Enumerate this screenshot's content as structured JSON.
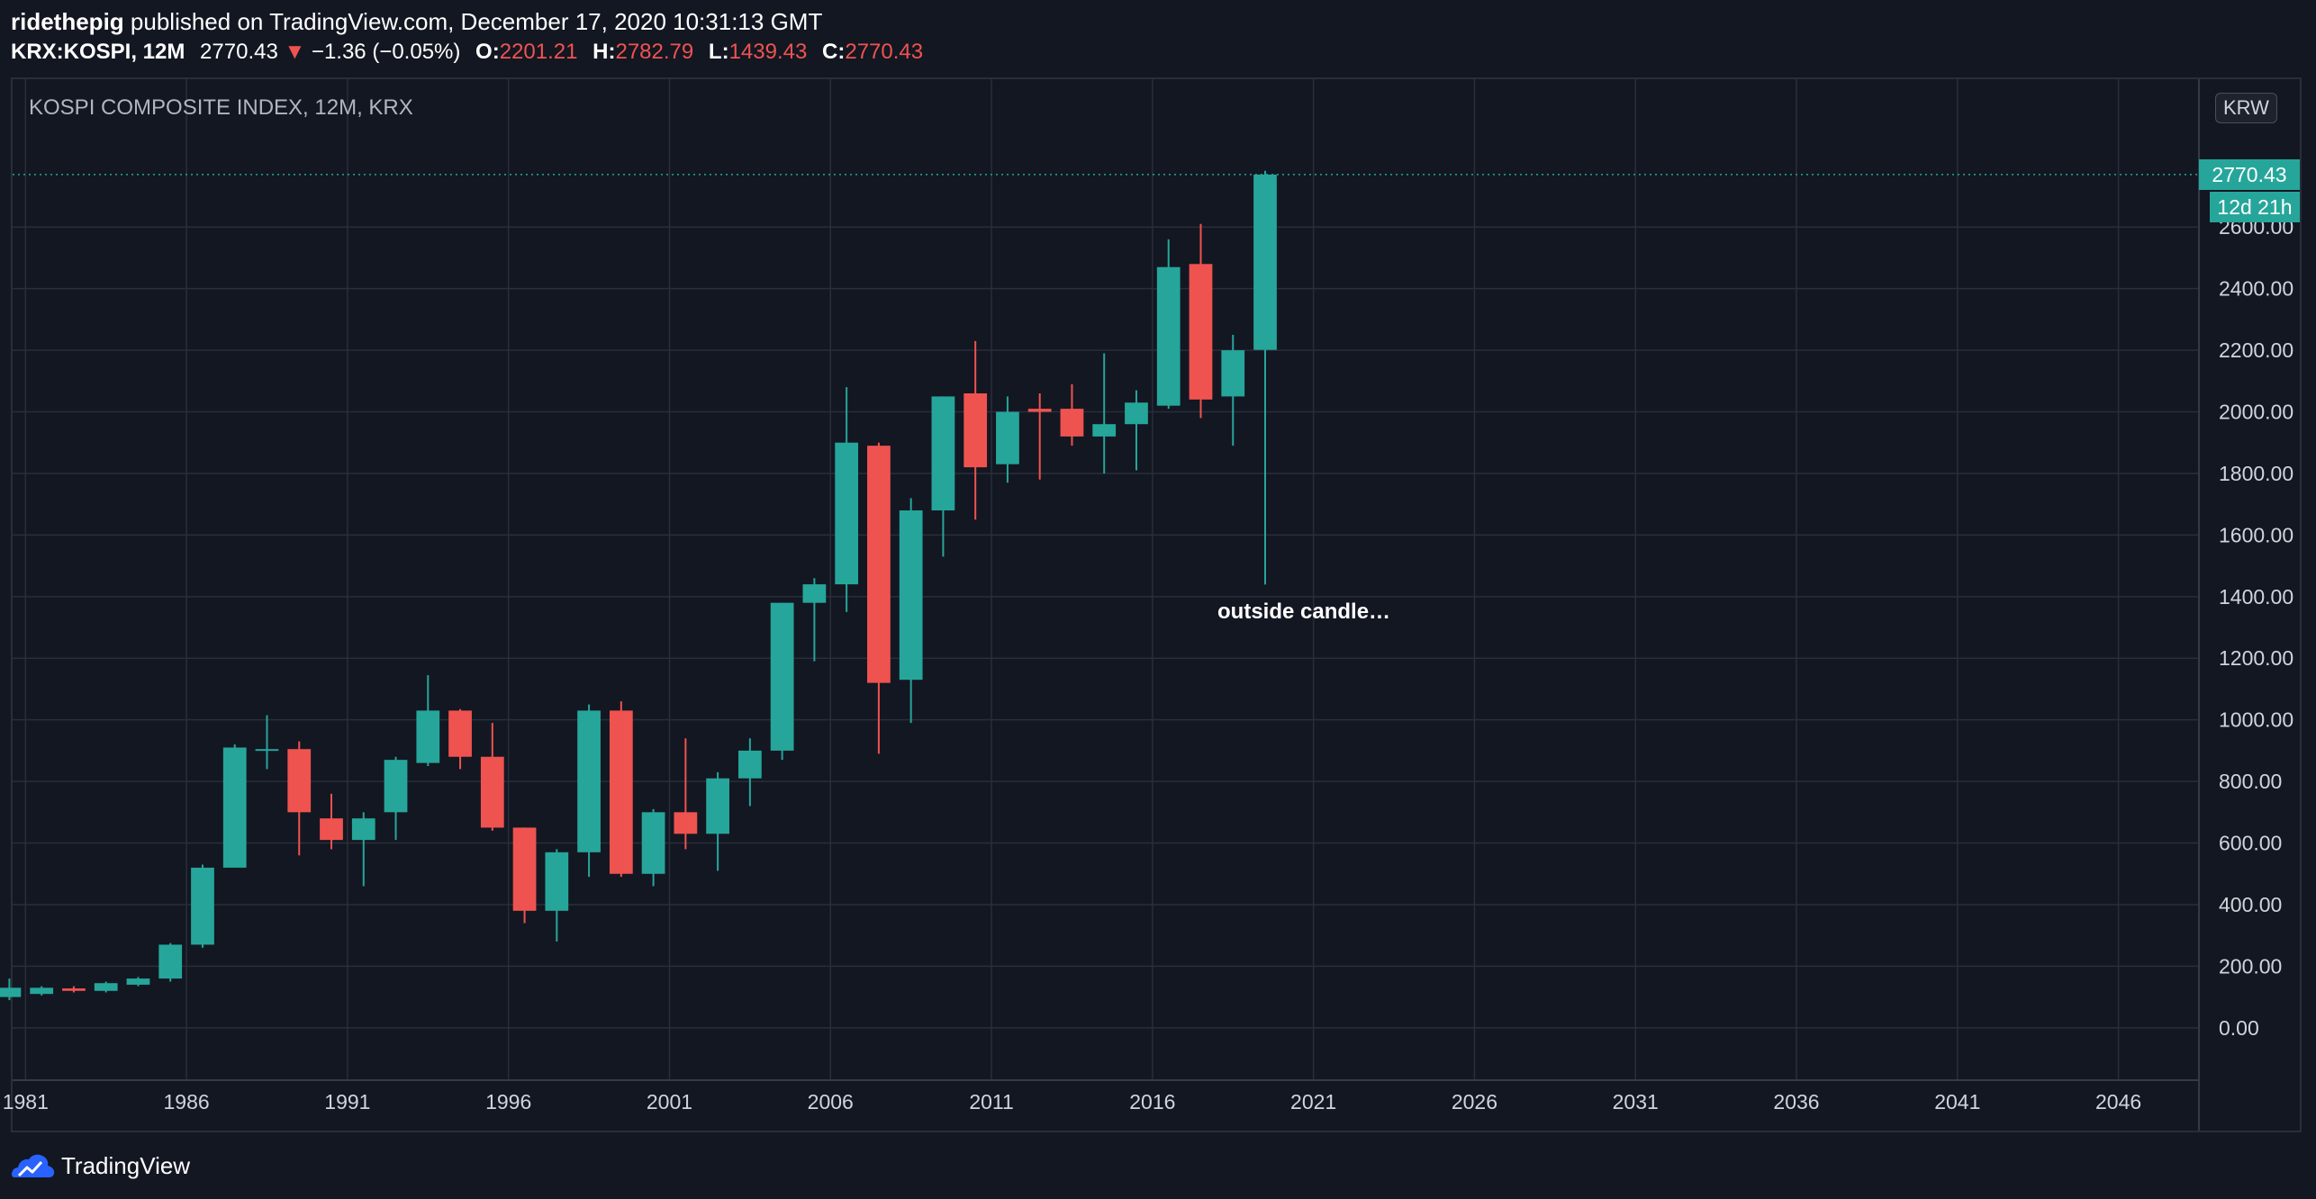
{
  "header": {
    "author": "ridethepig",
    "published_text": "published on TradingView.com, December 17, 2020 10:31:13 GMT",
    "symbol": "KRX:KOSPI, 12M",
    "last": "2770.43",
    "change_arrow": "▼",
    "change": "−1.36 (−0.05%)",
    "o_label": "O:",
    "o_value": "2201.21",
    "h_label": "H:",
    "h_value": "2782.79",
    "l_label": "L:",
    "l_value": "1439.43",
    "c_label": "C:",
    "c_value": "2770.43"
  },
  "chart": {
    "title": "KOSPI COMPOSITE INDEX, 12M, KRX",
    "currency": "KRW",
    "price_tag": "2770.43",
    "countdown": "12d 21h",
    "annotation": "outside candle…"
  },
  "footer": {
    "brand": "TradingView"
  },
  "colors": {
    "up": "#26a69a",
    "down": "#ef5350",
    "background": "#131722",
    "grid": "#2a2e39",
    "text": "#d1d4dc"
  },
  "chart_data": {
    "type": "candlestick",
    "interval": "12M",
    "xlim": [
      1980.6,
      2048.5
    ],
    "ylim": [
      -170,
      3080
    ],
    "y_ticks": [
      "0.00",
      "200.00",
      "400.00",
      "600.00",
      "800.00",
      "1000.00",
      "1200.00",
      "1400.00",
      "1600.00",
      "1800.00",
      "2000.00",
      "2200.00",
      "2400.00",
      "2600.00"
    ],
    "x_ticks": [
      "1981",
      "1986",
      "1991",
      "1996",
      "2001",
      "2006",
      "2011",
      "2016",
      "2021",
      "2026",
      "2031",
      "2036",
      "2041",
      "2046"
    ],
    "last_price": 2770.43,
    "candles": [
      {
        "year": 1980,
        "o": 100,
        "h": 160,
        "l": 90,
        "c": 130
      },
      {
        "year": 1981,
        "o": 110,
        "h": 135,
        "l": 105,
        "c": 130
      },
      {
        "year": 1982,
        "o": 128,
        "h": 135,
        "l": 115,
        "c": 120
      },
      {
        "year": 1983,
        "o": 120,
        "h": 150,
        "l": 115,
        "c": 145
      },
      {
        "year": 1984,
        "o": 140,
        "h": 165,
        "l": 135,
        "c": 160
      },
      {
        "year": 1985,
        "o": 160,
        "h": 275,
        "l": 150,
        "c": 270
      },
      {
        "year": 1986,
        "o": 270,
        "h": 530,
        "l": 260,
        "c": 520
      },
      {
        "year": 1987,
        "o": 520,
        "h": 920,
        "l": 520,
        "c": 910
      },
      {
        "year": 1988,
        "o": 900,
        "h": 1015,
        "l": 840,
        "c": 905
      },
      {
        "year": 1989,
        "o": 905,
        "h": 930,
        "l": 560,
        "c": 700
      },
      {
        "year": 1990,
        "o": 680,
        "h": 760,
        "l": 580,
        "c": 610
      },
      {
        "year": 1991,
        "o": 610,
        "h": 700,
        "l": 460,
        "c": 680
      },
      {
        "year": 1992,
        "o": 700,
        "h": 880,
        "l": 610,
        "c": 870
      },
      {
        "year": 1993,
        "o": 860,
        "h": 1145,
        "l": 850,
        "c": 1030
      },
      {
        "year": 1994,
        "o": 1030,
        "h": 1035,
        "l": 840,
        "c": 880
      },
      {
        "year": 1995,
        "o": 880,
        "h": 990,
        "l": 640,
        "c": 650
      },
      {
        "year": 1996,
        "o": 650,
        "h": 650,
        "l": 340,
        "c": 380
      },
      {
        "year": 1997,
        "o": 380,
        "h": 580,
        "l": 280,
        "c": 570
      },
      {
        "year": 1998,
        "o": 570,
        "h": 1050,
        "l": 490,
        "c": 1030
      },
      {
        "year": 1999,
        "o": 1030,
        "h": 1060,
        "l": 490,
        "c": 500
      },
      {
        "year": 2000,
        "o": 500,
        "h": 710,
        "l": 460,
        "c": 700
      },
      {
        "year": 2001,
        "o": 700,
        "h": 940,
        "l": 580,
        "c": 630
      },
      {
        "year": 2002,
        "o": 630,
        "h": 830,
        "l": 510,
        "c": 810
      },
      {
        "year": 2003,
        "o": 810,
        "h": 940,
        "l": 720,
        "c": 900
      },
      {
        "year": 2004,
        "o": 900,
        "h": 1380,
        "l": 870,
        "c": 1380
      },
      {
        "year": 2005,
        "o": 1380,
        "h": 1460,
        "l": 1190,
        "c": 1440
      },
      {
        "year": 2006,
        "o": 1440,
        "h": 2080,
        "l": 1350,
        "c": 1900
      },
      {
        "year": 2007,
        "o": 1890,
        "h": 1900,
        "l": 890,
        "c": 1120
      },
      {
        "year": 2008,
        "o": 1130,
        "h": 1720,
        "l": 990,
        "c": 1680
      },
      {
        "year": 2009,
        "o": 1680,
        "h": 2050,
        "l": 1530,
        "c": 2050
      },
      {
        "year": 2010,
        "o": 2060,
        "h": 2230,
        "l": 1650,
        "c": 1820
      },
      {
        "year": 2011,
        "o": 1830,
        "h": 2050,
        "l": 1770,
        "c": 2000
      },
      {
        "year": 2012,
        "o": 2010,
        "h": 2060,
        "l": 1780,
        "c": 2000
      },
      {
        "year": 2013,
        "o": 2010,
        "h": 2090,
        "l": 1890,
        "c": 1920
      },
      {
        "year": 2014,
        "o": 1920,
        "h": 2190,
        "l": 1800,
        "c": 1960
      },
      {
        "year": 2015,
        "o": 1960,
        "h": 2070,
        "l": 1810,
        "c": 2030
      },
      {
        "year": 2016,
        "o": 2020,
        "h": 2560,
        "l": 2010,
        "c": 2470
      },
      {
        "year": 2017,
        "o": 2480,
        "h": 2610,
        "l": 1980,
        "c": 2040
      },
      {
        "year": 2018,
        "o": 2050,
        "h": 2250,
        "l": 1890,
        "c": 2200
      },
      {
        "year": 2019,
        "o": 2201.21,
        "h": 2782.79,
        "l": 1439.43,
        "c": 2770.43
      }
    ]
  }
}
